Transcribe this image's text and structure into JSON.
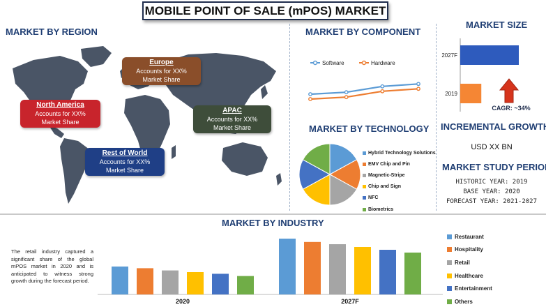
{
  "title": "MOBILE POINT OF SALE (mPOS) MARKET",
  "region": {
    "heading": "MARKET BY REGION",
    "boxes": [
      {
        "name": "North America",
        "line1": "Accounts for XX%",
        "line2": "Market Share",
        "color": "#c8242c"
      },
      {
        "name": "Europe",
        "line1": "Accounts for XX%",
        "line2": "Market Share",
        "color": "#8a4e2a"
      },
      {
        "name": "APAC",
        "line1": "Accounts for XX%",
        "line2": "Market Share",
        "color": "#3e4d3a"
      },
      {
        "name": "Rest of World",
        "line1": "Accounts for XX%",
        "line2": "Market Share",
        "color": "#1f3f86"
      }
    ]
  },
  "component": {
    "heading": "MARKET BY COMPONENT",
    "legend": [
      "Software",
      "Hardware"
    ],
    "colors": [
      "#5b9bd5",
      "#ed7d31"
    ]
  },
  "technology": {
    "heading": "MARKET BY TECHNOLOGY",
    "legend": [
      "Hybrid Technology Solutions",
      "EMV Chip and Pin",
      "Magnetic-Stripe",
      "Chip and Sign",
      "NFC",
      "Biometrics"
    ],
    "colors": [
      "#5b9bd5",
      "#ed7d31",
      "#a5a5a5",
      "#ffc000",
      "#4472c4",
      "#70ad47"
    ]
  },
  "size": {
    "heading": "MARKET SIZE",
    "categories": [
      "2027F",
      "2019"
    ],
    "colors": [
      "#2e5bbd",
      "#f58634"
    ],
    "cagr": "CAGR: ~34%"
  },
  "growth": {
    "heading": "INCREMENTAL GROWTH",
    "value": "USD XX BN"
  },
  "study": {
    "heading": "MARKET STUDY PERIOD",
    "historic": "HISTORIC YEAR: 2019",
    "base": "BASE YEAR: 2020",
    "forecast": "FORECAST YEAR: 2021-2027"
  },
  "industry": {
    "heading": "MARKET BY INDUSTRY",
    "text": "The retail industry captured a significant share of the global mPOS market in 2020 and is anticipated to witness strong growth during the forecast period.",
    "legend": [
      "Restaurant",
      "Hospitality",
      "Retail",
      "Healthcare",
      "Entertainment",
      "Others"
    ],
    "colors": [
      "#5b9bd5",
      "#ed7d31",
      "#a5a5a5",
      "#ffc000",
      "#4472c4",
      "#70ad47"
    ]
  },
  "chart_data": [
    {
      "type": "line",
      "title": "MARKET BY COMPONENT",
      "x": [
        1,
        2,
        3,
        4
      ],
      "series": [
        {
          "name": "Software",
          "values": [
            3.0,
            3.4,
            4.6,
            5.1
          ]
        },
        {
          "name": "Hardware",
          "values": [
            2.0,
            2.4,
            3.6,
            4.1
          ]
        }
      ],
      "ylim": [
        0,
        8
      ]
    },
    {
      "type": "pie",
      "title": "MARKET BY TECHNOLOGY",
      "categories": [
        "Hybrid Technology Solutions",
        "EMV Chip and Pin",
        "Magnetic-Stripe",
        "Chip and Sign",
        "NFC",
        "Biometrics"
      ],
      "values": [
        17,
        16,
        17,
        17,
        16,
        17
      ]
    },
    {
      "type": "bar",
      "title": "MARKET SIZE",
      "orientation": "horizontal",
      "categories": [
        "2027F",
        "2019"
      ],
      "values": [
        100,
        36
      ],
      "xlim": [
        0,
        100
      ]
    },
    {
      "type": "bar",
      "title": "MARKET BY INDUSTRY",
      "categories": [
        "2020",
        "2027F"
      ],
      "series": [
        {
          "name": "Restaurant",
          "values": [
            50,
            100
          ]
        },
        {
          "name": "Hospitality",
          "values": [
            47,
            94
          ]
        },
        {
          "name": "Retail",
          "values": [
            43,
            90
          ]
        },
        {
          "name": "Healthcare",
          "values": [
            40,
            85
          ]
        },
        {
          "name": "Entertainment",
          "values": [
            37,
            80
          ]
        },
        {
          "name": "Others",
          "values": [
            33,
            75
          ]
        }
      ],
      "ylim": [
        0,
        100
      ]
    }
  ]
}
